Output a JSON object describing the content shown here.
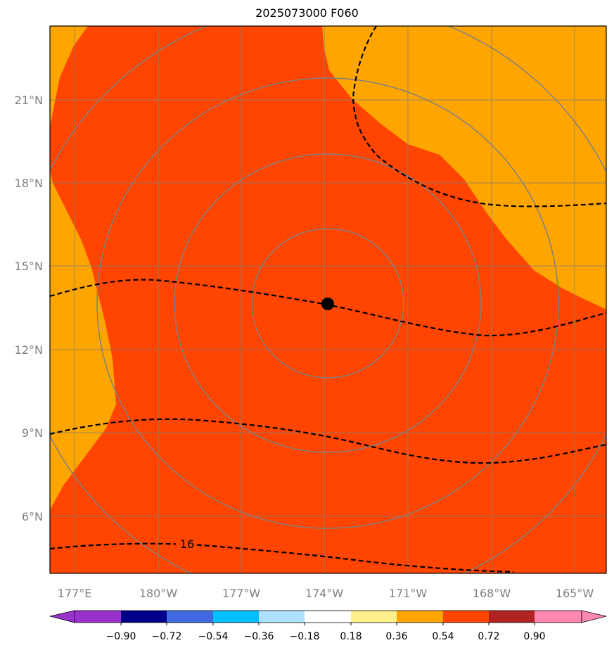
{
  "title": "2025073000 F060",
  "map": {
    "lat_labels": [
      "21°N",
      "18°N",
      "15°N",
      "12°N",
      "9°N",
      "6°N"
    ],
    "lon_labels": [
      "177°E",
      "180°W",
      "177°W",
      "174°W",
      "171°W",
      "168°W",
      "165°W"
    ],
    "storm_center": {
      "lat": 13.6,
      "lon": "173.9°W",
      "marker": "black-dot"
    },
    "contour_label": "16",
    "fill_colors": {
      "inner": "#ff4500",
      "outer": "#ffa500"
    },
    "range_rings": 4,
    "grid": true
  },
  "colorbar": {
    "tick_labels": [
      "−0.90",
      "−0.72",
      "−0.54",
      "−0.36",
      "−0.18",
      "0.18",
      "0.36",
      "0.54",
      "0.72",
      "0.90"
    ],
    "colors": [
      "#9932cc",
      "#9932cc",
      "#00008b",
      "#4169e1",
      "#00bfff",
      "#b0e0ff",
      "#ffffff",
      "#fff08c",
      "#ffa500",
      "#ff4500",
      "#b22222",
      "#ff88b0",
      "#ff88b0"
    ],
    "extend": "both"
  }
}
